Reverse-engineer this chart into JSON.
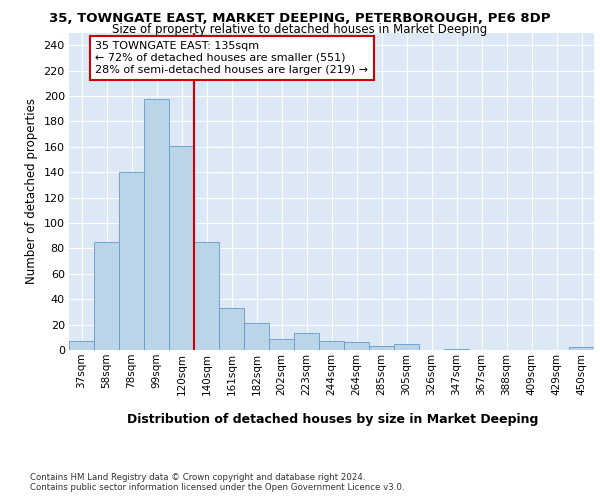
{
  "title": "35, TOWNGATE EAST, MARKET DEEPING, PETERBOROUGH, PE6 8DP",
  "subtitle": "Size of property relative to detached houses in Market Deeping",
  "xlabel": "Distribution of detached houses by size in Market Deeping",
  "ylabel": "Number of detached properties",
  "categories": [
    "37sqm",
    "58sqm",
    "78sqm",
    "99sqm",
    "120sqm",
    "140sqm",
    "161sqm",
    "182sqm",
    "202sqm",
    "223sqm",
    "244sqm",
    "264sqm",
    "285sqm",
    "305sqm",
    "326sqm",
    "347sqm",
    "367sqm",
    "388sqm",
    "409sqm",
    "429sqm",
    "450sqm"
  ],
  "values": [
    7,
    85,
    140,
    198,
    161,
    85,
    33,
    21,
    9,
    13,
    7,
    6,
    3,
    5,
    0,
    1,
    0,
    0,
    0,
    0,
    2
  ],
  "bar_color": "#bad4e8",
  "bar_edge_color": "#6699cc",
  "vline_x": 4.5,
  "vline_color": "#cc0000",
  "annotation_text": "35 TOWNGATE EAST: 135sqm\n← 72% of detached houses are smaller (551)\n28% of semi-detached houses are larger (219) →",
  "annotation_box_color": "#ffffff",
  "annotation_box_edge": "#cc0000",
  "ylim": [
    0,
    250
  ],
  "yticks": [
    0,
    20,
    40,
    60,
    80,
    100,
    120,
    140,
    160,
    180,
    200,
    220,
    240
  ],
  "footer_line1": "Contains HM Land Registry data © Crown copyright and database right 2024.",
  "footer_line2": "Contains public sector information licensed under the Open Government Licence v3.0.",
  "background_color": "#dce8f5",
  "grid_color": "#ffffff",
  "fig_bg": "#ffffff"
}
